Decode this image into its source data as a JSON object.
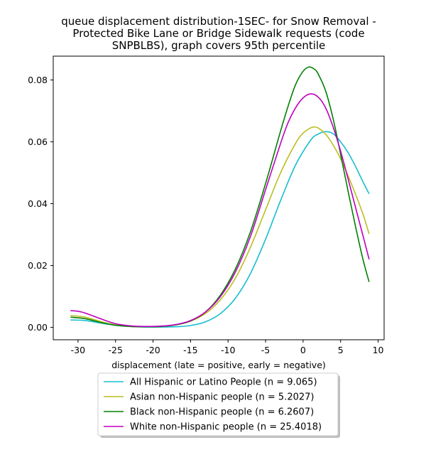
{
  "chart_data": {
    "type": "line",
    "title_lines": [
      "queue displacement distribution-1SEC-  for Snow Removal -",
      "Protected Bike Lane or Bridge Sidewalk  requests (code",
      "SNPBLBS), graph covers 95th percentile"
    ],
    "xlabel": "displacement (late = positive, early = negative)",
    "ylabel": "",
    "xlim": [
      -33.3,
      10.8
    ],
    "ylim": [
      -0.004,
      0.0877
    ],
    "xticks": [
      -30,
      -25,
      -20,
      -15,
      -10,
      -5,
      0,
      5,
      10
    ],
    "yticks": [
      0.0,
      0.02,
      0.04,
      0.06,
      0.08
    ],
    "ytick_labels": [
      "0.00",
      "0.02",
      "0.04",
      "0.06",
      "0.08"
    ],
    "grid": false,
    "legend_position": "bottom-center",
    "series": [
      {
        "name": "All Hispanic or Latino People (n = 9.065)",
        "color": "#17becf",
        "x": [
          -31,
          -29,
          -27,
          -25,
          -23,
          -21,
          -19,
          -17,
          -15,
          -13,
          -11,
          -9,
          -7,
          -5,
          -3,
          -1,
          1,
          2,
          3,
          4,
          5,
          6,
          7,
          8,
          8.8
        ],
        "y": [
          0.0024,
          0.0022,
          0.0014,
          0.0007,
          0.0003,
          0.0001,
          0.0001,
          0.0002,
          0.0006,
          0.0018,
          0.0045,
          0.0095,
          0.0175,
          0.0285,
          0.041,
          0.0525,
          0.0605,
          0.0625,
          0.0633,
          0.0626,
          0.06,
          0.0565,
          0.052,
          0.047,
          0.0432
        ]
      },
      {
        "name": "Asian non-Hispanic people (n = 5.2027)",
        "color": "#bcbd22",
        "x": [
          -31,
          -29,
          -27,
          -25,
          -23,
          -21,
          -19,
          -17,
          -15,
          -13,
          -11,
          -9,
          -7,
          -5,
          -3,
          -1,
          0,
          1,
          1.5,
          2,
          3,
          4,
          5,
          6,
          7,
          8,
          8.8
        ],
        "y": [
          0.0038,
          0.0033,
          0.0019,
          0.0008,
          0.0003,
          0.0002,
          0.0003,
          0.0008,
          0.002,
          0.0045,
          0.009,
          0.016,
          0.026,
          0.038,
          0.05,
          0.0595,
          0.0628,
          0.0645,
          0.0648,
          0.0645,
          0.0625,
          0.059,
          0.0545,
          0.049,
          0.043,
          0.0365,
          0.0302
        ]
      },
      {
        "name": "Black non-Hispanic people (n = 6.2607)",
        "color": "#008000",
        "x": [
          -31,
          -29,
          -27,
          -25,
          -23,
          -21,
          -19,
          -17,
          -15,
          -13,
          -11,
          -9,
          -7,
          -5,
          -3,
          -2,
          -1,
          0,
          0.8,
          1.5,
          2,
          3,
          4,
          5,
          6,
          7,
          8,
          8.8
        ],
        "y": [
          0.0033,
          0.0028,
          0.0016,
          0.0007,
          0.0003,
          0.0002,
          0.0003,
          0.0008,
          0.0021,
          0.005,
          0.0105,
          0.019,
          0.031,
          0.0465,
          0.0635,
          0.0715,
          0.0785,
          0.0828,
          0.0842,
          0.0835,
          0.082,
          0.0765,
          0.0675,
          0.056,
          0.044,
          0.0325,
          0.0218,
          0.0147
        ]
      },
      {
        "name": "White non-Hispanic people (n = 25.4018)",
        "color": "#bf00bf",
        "x": [
          -31,
          -30,
          -29,
          -27,
          -25,
          -23,
          -21,
          -19,
          -17,
          -15,
          -13,
          -11,
          -9,
          -7,
          -5,
          -3,
          -2,
          -1,
          0,
          1,
          2,
          3,
          4,
          5,
          6,
          7,
          8,
          8.8
        ],
        "y": [
          0.0054,
          0.0052,
          0.0046,
          0.0028,
          0.0012,
          0.0005,
          0.0003,
          0.0004,
          0.0009,
          0.0022,
          0.005,
          0.01,
          0.018,
          0.0295,
          0.0445,
          0.0595,
          0.0662,
          0.071,
          0.0742,
          0.0755,
          0.0745,
          0.071,
          0.0648,
          0.057,
          0.048,
          0.0387,
          0.0295,
          0.022
        ]
      }
    ]
  }
}
